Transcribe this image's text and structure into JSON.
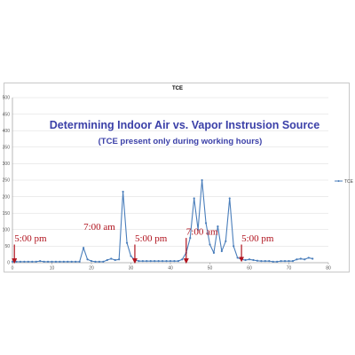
{
  "heading": "Determining Indoor Air vs. Vapor Instrusion Source",
  "subheading": "(TCE present only during working hours)",
  "annotations": [
    {
      "text": "5:00 pm",
      "x": 0.5,
      "y": 65
    },
    {
      "text": "7:00 am",
      "x": 18,
      "y": 100
    },
    {
      "text": "5:00 pm",
      "x": 31,
      "y": 65
    },
    {
      "text": "7:00 am",
      "x": 44,
      "y": 85
    },
    {
      "text": "5:00 pm",
      "x": 58,
      "y": 65
    }
  ],
  "arrows": [
    {
      "x": 0.5,
      "y_from": 55,
      "y_to": 5
    },
    {
      "x": 31,
      "y_from": 55,
      "y_to": 5
    },
    {
      "x": 44,
      "y_from": 75,
      "y_to": 5
    },
    {
      "x": 58,
      "y_from": 55,
      "y_to": 10
    }
  ],
  "colors": {
    "series": "#4a7ebb",
    "callout": "#b0131e",
    "heading": "#3b40a8",
    "grid": "#d9d9d9"
  },
  "chart_data": {
    "type": "line",
    "title": "TCE",
    "xlabel": "",
    "ylabel": "",
    "xlim": [
      0,
      80
    ],
    "ylim": [
      0,
      500
    ],
    "xticks": [
      0,
      10,
      20,
      30,
      40,
      50,
      60,
      70,
      80
    ],
    "yticks": [
      0,
      50,
      100,
      150,
      200,
      250,
      300,
      350,
      400,
      450,
      500
    ],
    "grid": true,
    "legend": "right",
    "series": [
      {
        "name": "TCE",
        "x": [
          0,
          1,
          2,
          3,
          4,
          5,
          6,
          7,
          8,
          9,
          10,
          11,
          12,
          13,
          14,
          15,
          16,
          17,
          18,
          19,
          20,
          21,
          22,
          23,
          24,
          25,
          26,
          27,
          28,
          29,
          30,
          31,
          32,
          33,
          34,
          35,
          36,
          37,
          38,
          39,
          40,
          41,
          42,
          43,
          44,
          45,
          46,
          47,
          48,
          49,
          50,
          51,
          52,
          53,
          54,
          55,
          56,
          57,
          58,
          59,
          60,
          61,
          62,
          63,
          64,
          65,
          66,
          67,
          68,
          69,
          70,
          71,
          72,
          73,
          74,
          75,
          76
        ],
        "y": [
          3,
          3,
          3,
          3,
          3,
          3,
          3,
          5,
          3,
          3,
          3,
          3,
          3,
          3,
          3,
          3,
          3,
          3,
          45,
          10,
          5,
          3,
          3,
          3,
          8,
          12,
          8,
          10,
          215,
          60,
          20,
          8,
          5,
          5,
          5,
          5,
          5,
          5,
          5,
          5,
          5,
          5,
          5,
          10,
          30,
          75,
          195,
          100,
          250,
          120,
          55,
          30,
          110,
          35,
          65,
          195,
          50,
          15,
          10,
          8,
          10,
          8,
          6,
          5,
          5,
          5,
          3,
          3,
          5,
          5,
          5,
          5,
          10,
          12,
          10,
          15,
          12
        ]
      }
    ]
  }
}
